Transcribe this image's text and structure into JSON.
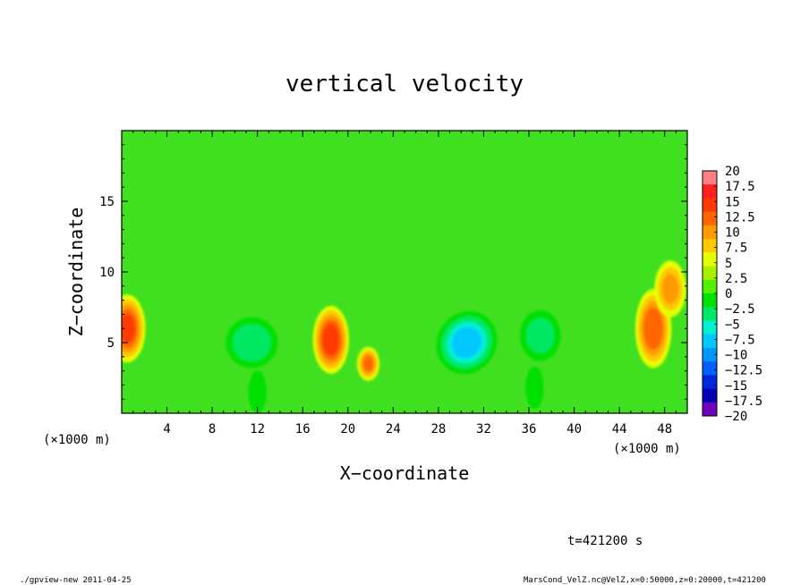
{
  "chart_data": {
    "type": "heatmap",
    "title": "vertical velocity",
    "xlabel": "X−coordinate",
    "ylabel": "Z−coordinate",
    "x_unit_left": "(×1000 m)",
    "x_unit_right": "(×1000 m)",
    "xlim": [
      0,
      50
    ],
    "ylim": [
      0,
      20
    ],
    "xticks": [
      "4",
      "8",
      "12",
      "16",
      "20",
      "24",
      "28",
      "32",
      "36",
      "40",
      "44",
      "48"
    ],
    "xtick_values": [
      4,
      8,
      12,
      16,
      20,
      24,
      28,
      32,
      36,
      40,
      44,
      48
    ],
    "yticks": [
      "5",
      "10",
      "15"
    ],
    "ytick_values": [
      5,
      10,
      15
    ],
    "features": [
      {
        "x": 0.5,
        "z": 6.0,
        "value": 13,
        "rx": 1.6,
        "rz": 2.4
      },
      {
        "x": 18.5,
        "z": 5.2,
        "value": 14,
        "rx": 1.6,
        "rz": 2.4
      },
      {
        "x": 21.8,
        "z": 3.5,
        "value": 10,
        "rx": 1.0,
        "rz": 1.2
      },
      {
        "x": 47.0,
        "z": 6.0,
        "value": 12,
        "rx": 1.6,
        "rz": 2.8
      },
      {
        "x": 48.5,
        "z": 8.8,
        "value": 8,
        "rx": 1.4,
        "rz": 2.0
      },
      {
        "x": 30.5,
        "z": 5.0,
        "value": -11,
        "rx": 2.6,
        "rz": 2.3
      },
      {
        "x": 11.5,
        "z": 5.0,
        "value": -7,
        "rx": 2.3,
        "rz": 1.8
      },
      {
        "x": 37.0,
        "z": 5.5,
        "value": -6,
        "rx": 1.8,
        "rz": 1.8
      },
      {
        "x": 12.0,
        "z": 1.5,
        "value": -4,
        "rx": 0.8,
        "rz": 1.5
      },
      {
        "x": 36.5,
        "z": 1.8,
        "value": -4,
        "rx": 0.8,
        "rz": 1.5
      }
    ],
    "colorbar": {
      "labels": [
        "20",
        "17.5",
        "15",
        "12.5",
        "10",
        "7.5",
        "5",
        "2.5",
        "0",
        "−2.5",
        "−5",
        "−7.5",
        "−10",
        "−12.5",
        "−15",
        "−17.5",
        "−20"
      ],
      "colors": [
        "#ff8080",
        "#ff2020",
        "#ff3a00",
        "#ff6600",
        "#ff9a00",
        "#ffc800",
        "#e6ff00",
        "#a8f000",
        "#50f000",
        "#00e000",
        "#00e864",
        "#00f0d0",
        "#00c8ff",
        "#0096ff",
        "#0060ff",
        "#0026e0",
        "#0000b4",
        "#7000c0"
      ]
    }
  },
  "time_label": "t=421200 s",
  "footer_left": "./gpview-new  2011-04-25",
  "footer_right": "MarsCond_VelZ.nc@VelZ,x=0:50000,z=0:20000,t=421200"
}
